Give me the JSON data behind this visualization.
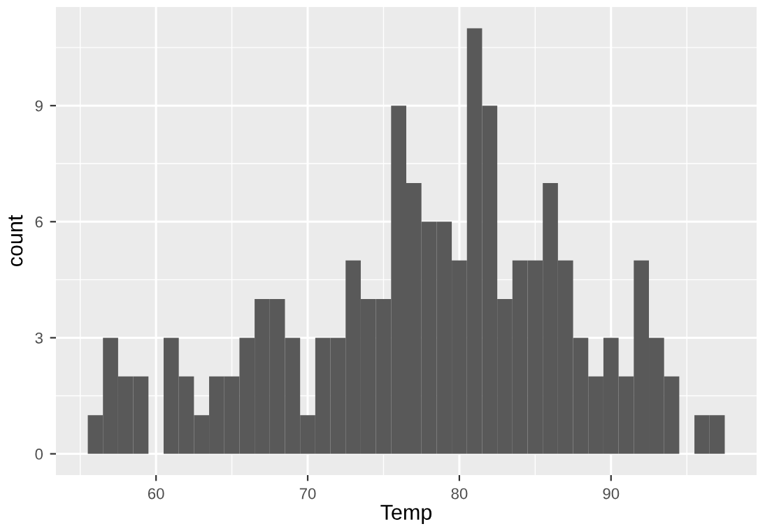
{
  "chart_data": {
    "type": "histogram",
    "xlabel": "Temp",
    "ylabel": "count",
    "bins": [
      55.5,
      56.5,
      57.5,
      58.5,
      59.5,
      60.5,
      61.5,
      62.5,
      63.5,
      64.5,
      65.5,
      66.5,
      67.5,
      68.5,
      69.5,
      70.5,
      71.5,
      72.5,
      73.5,
      74.5,
      75.5,
      76.5,
      77.5,
      78.5,
      79.5,
      80.5,
      81.5,
      82.5,
      83.5,
      84.5,
      85.5,
      86.5,
      87.5,
      88.5,
      89.5,
      90.5,
      91.5,
      92.5,
      93.5,
      94.5,
      95.5,
      96.5,
      97.5
    ],
    "values": [
      1,
      3,
      2,
      2,
      0,
      3,
      2,
      1,
      2,
      2,
      3,
      4,
      4,
      3,
      1,
      3,
      3,
      5,
      4,
      4,
      9,
      7,
      6,
      6,
      5,
      11,
      9,
      4,
      5,
      5,
      7,
      5,
      3,
      2,
      3,
      2,
      5,
      3,
      2,
      0,
      1,
      1
    ],
    "color": "#595959",
    "xlim": [
      53.4,
      99.6
    ],
    "ylim": [
      -0.55,
      11.55
    ],
    "xticks": [
      60,
      70,
      80,
      90
    ],
    "yticks": [
      0,
      3,
      6,
      9
    ],
    "grid": true
  }
}
